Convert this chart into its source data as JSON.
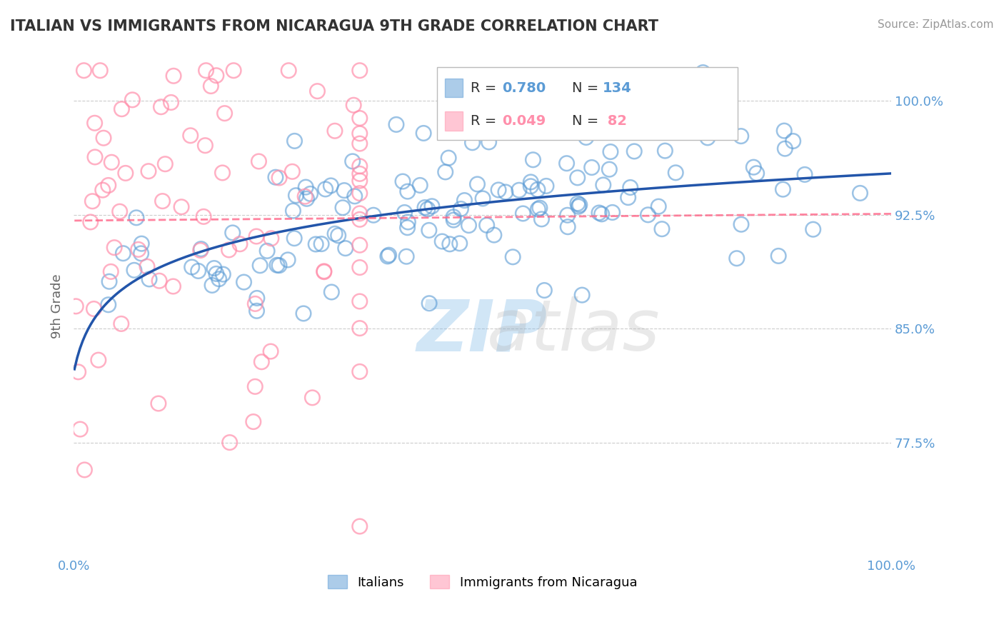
{
  "title": "ITALIAN VS IMMIGRANTS FROM NICARAGUA 9TH GRADE CORRELATION CHART",
  "source": "Source: ZipAtlas.com",
  "xlabel": "",
  "ylabel": "9th Grade",
  "xlim": [
    0.0,
    1.0
  ],
  "ylim": [
    0.7,
    1.03
  ],
  "yticks": [
    0.775,
    0.85,
    0.925,
    1.0
  ],
  "ytick_labels": [
    "77.5%",
    "85.0%",
    "92.5%",
    "100.0%"
  ],
  "xtick_labels": [
    "0.0%",
    "100.0%"
  ],
  "xticks": [
    0.0,
    1.0
  ],
  "blue_R": 0.78,
  "blue_N": 134,
  "pink_R": 0.049,
  "pink_N": 82,
  "blue_color": "#5B9BD5",
  "pink_color": "#FF8FAB",
  "blue_line_color": "#2255AA",
  "pink_line_color": "#FF6688",
  "grid_color": "#CCCCCC",
  "title_color": "#333333",
  "axis_label_color": "#5B9BD5",
  "watermark_zip": "ZIP",
  "watermark_atlas": "atlas",
  "legend_label_blue": "Italians",
  "legend_label_pink": "Immigrants from Nicaragua",
  "background_color": "#FFFFFF"
}
